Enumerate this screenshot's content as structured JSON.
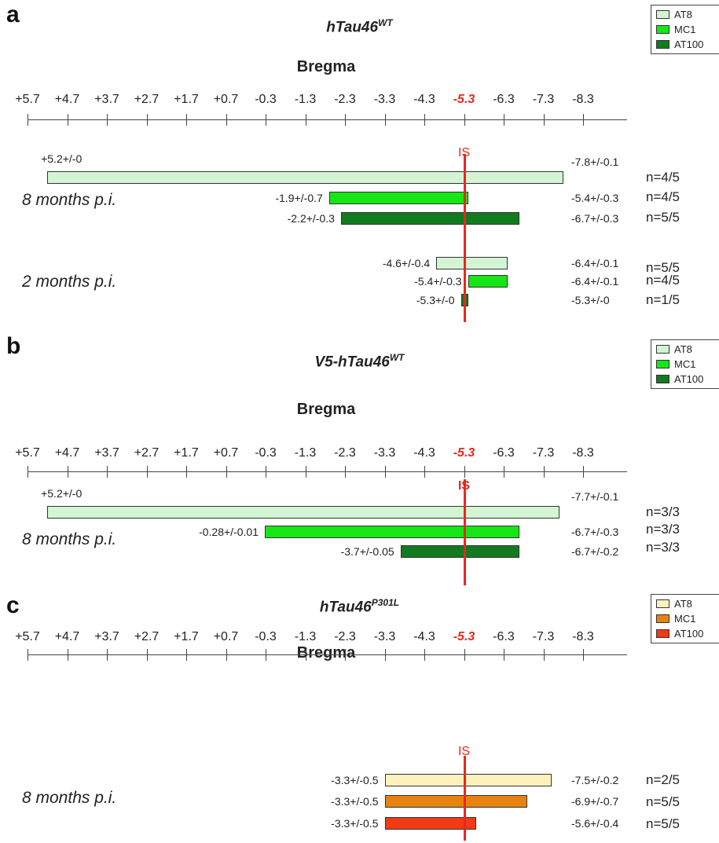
{
  "chart_data": [
    {
      "type": "bar",
      "panel": "a",
      "title": "hTau46",
      "title_sup": "WT",
      "axis_title": "Bregma",
      "ticks": [
        "+5.7",
        "+4.7",
        "+3.7",
        "+2.7",
        "+1.7",
        "+0.7",
        "-0.3",
        "-1.3",
        "-2.3",
        "-3.3",
        "-4.3",
        "-5.3",
        "-6.3",
        "-7.3",
        "-8.3"
      ],
      "highlight_tick": "-5.3",
      "injection_site_label": "IS",
      "injection_site_x": -5.3,
      "legend": [
        {
          "label": "AT8",
          "color": "#d3f5d3"
        },
        {
          "label": "MC1",
          "color": "#16e616"
        },
        {
          "label": "AT100",
          "color": "#127a1f"
        }
      ],
      "groups": [
        {
          "label": "8 months p.i.",
          "series": [
            {
              "marker": "AT8",
              "start": 5.2,
              "end": -7.8,
              "start_label": "+5.2+/-0",
              "end_label": "-7.8+/-0.1",
              "n": "n=4/5"
            },
            {
              "marker": "MC1",
              "start": -1.9,
              "end": -5.4,
              "start_label": "-1.9+/-0.7",
              "end_label": "-5.4+/-0.3",
              "n": "n=4/5"
            },
            {
              "marker": "AT100",
              "start": -2.2,
              "end": -6.7,
              "start_label": "-2.2+/-0.3",
              "end_label": "-6.7+/-0.3",
              "n": "n=5/5"
            }
          ]
        },
        {
          "label": "2 months p.i.",
          "series": [
            {
              "marker": "AT8",
              "start": -4.6,
              "end": -6.4,
              "start_label": "-4.6+/-0.4",
              "end_label": "-6.4+/-0.1",
              "n": "n=5/5"
            },
            {
              "marker": "MC1",
              "start": -5.4,
              "end": -6.4,
              "start_label": "-5.4+/-0.3",
              "end_label": "-6.4+/-0.1",
              "n": "n=4/5"
            },
            {
              "marker": "AT100",
              "start": -5.3,
              "end": -5.3,
              "start_label": "-5.3+/-0",
              "end_label": "-5.3+/-0",
              "n": "n=1/5"
            }
          ]
        }
      ]
    },
    {
      "type": "bar",
      "panel": "b",
      "title": "V5-hTau46",
      "title_sup": "WT",
      "axis_title": "Bregma",
      "ticks": [
        "+5.7",
        "+4.7",
        "+3.7",
        "+2.7",
        "+1.7",
        "+0.7",
        "-0.3",
        "-1.3",
        "-2.3",
        "-3.3",
        "-4.3",
        "-5.3",
        "-6.3",
        "-7.3",
        "-8.3"
      ],
      "highlight_tick": "-5.3",
      "injection_site_label": "IS",
      "injection_site_x": -5.3,
      "legend": [
        {
          "label": "AT8",
          "color": "#d3f5d3"
        },
        {
          "label": "MC1",
          "color": "#16e616"
        },
        {
          "label": "AT100",
          "color": "#127a1f"
        }
      ],
      "groups": [
        {
          "label": "8 months p.i.",
          "series": [
            {
              "marker": "AT8",
              "start": 5.2,
              "end": -7.7,
              "start_label": "+5.2+/-0",
              "end_label": "-7.7+/-0.1",
              "n": "n=3/3"
            },
            {
              "marker": "MC1",
              "start": -0.28,
              "end": -6.7,
              "start_label": "-0.28+/-0.01",
              "end_label": "-6.7+/-0.3",
              "n": "n=3/3"
            },
            {
              "marker": "AT100",
              "start": -3.7,
              "end": -6.7,
              "start_label": "-3.7+/-0.05",
              "end_label": "-6.7+/-0.2",
              "n": "n=3/3"
            }
          ]
        }
      ]
    },
    {
      "type": "bar",
      "panel": "c",
      "title": "hTau46",
      "title_sup": "P301L",
      "axis_title": "Bregma",
      "ticks": [
        "+5.7",
        "+4.7",
        "+3.7",
        "+2.7",
        "+1.7",
        "+0.7",
        "-0.3",
        "-1.3",
        "-2.3",
        "-3.3",
        "-4.3",
        "-5.3",
        "-6.3",
        "-7.3",
        "-8.3"
      ],
      "highlight_tick": "-5.3",
      "injection_site_label": "IS",
      "injection_site_x": -5.3,
      "legend": [
        {
          "label": "AT8",
          "color": "#fdf2bd"
        },
        {
          "label": "MC1",
          "color": "#e8820f"
        },
        {
          "label": "AT100",
          "color": "#f23a14"
        }
      ],
      "groups": [
        {
          "label": "8 months p.i.",
          "series": [
            {
              "marker": "AT8",
              "start": -3.3,
              "end": -7.5,
              "start_label": "-3.3+/-0.5",
              "end_label": "-7.5+/-0.2",
              "n": "n=2/5"
            },
            {
              "marker": "MC1",
              "start": -3.3,
              "end": -6.9,
              "start_label": "-3.3+/-0.5",
              "end_label": "-6.9+/-0.7",
              "n": "n=5/5"
            },
            {
              "marker": "AT100",
              "start": -3.3,
              "end": -5.6,
              "start_label": "-3.3+/-0.5",
              "end_label": "-5.6+/-0.4",
              "n": "n=5/5"
            }
          ]
        }
      ]
    }
  ]
}
